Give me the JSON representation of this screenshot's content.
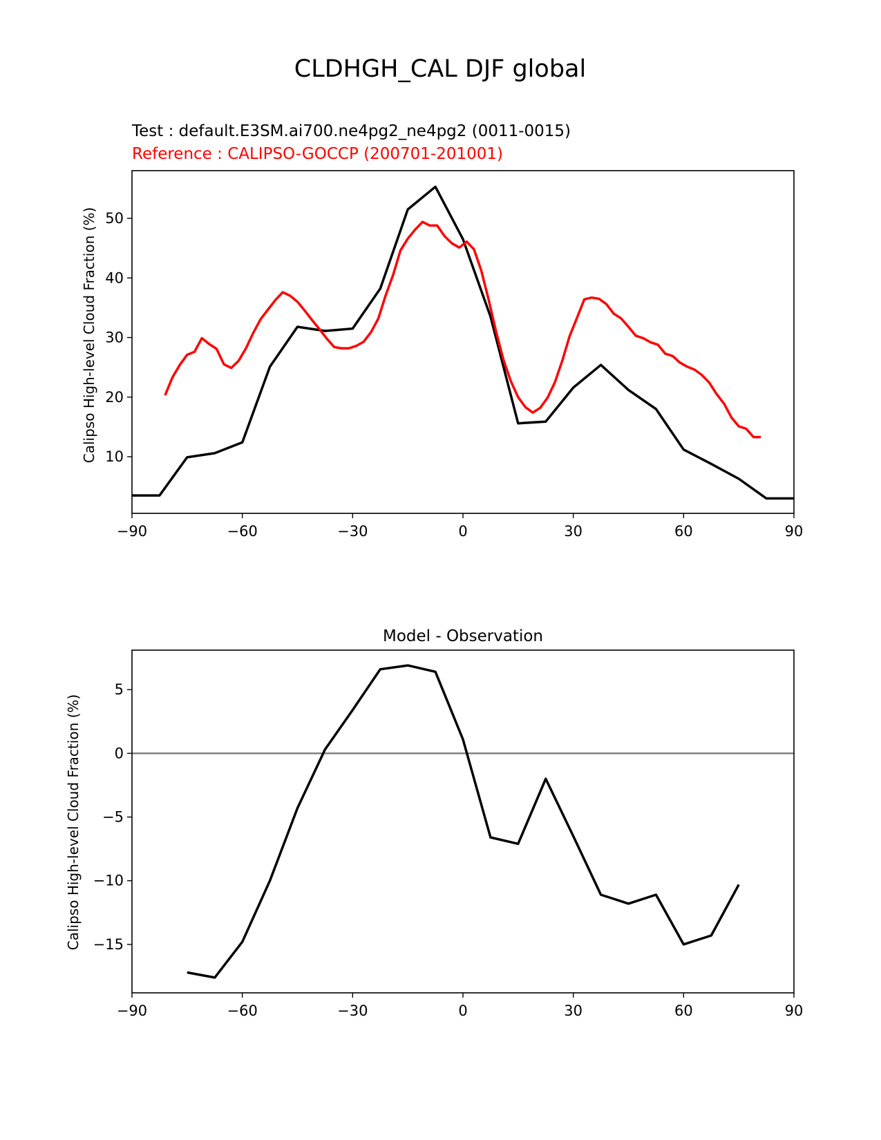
{
  "figure": {
    "suptitle": "CLDHGH_CAL DJF global",
    "colors": {
      "test": "#000000",
      "reference": "#ff0000",
      "zero_line": "#808080"
    }
  },
  "chart_data": [
    {
      "type": "line",
      "title": "",
      "test_label": "Test : default.E3SM.ai700.ne4pg2_ne4pg2 (0011-0015)",
      "reference_label": "Reference : CALIPSO-GOCCP (200701-201001)",
      "xlabel": "",
      "ylabel": "Calipso High-level Cloud Fraction (%)",
      "xlim": [
        -90,
        90
      ],
      "ylim": [
        0.5,
        58
      ],
      "xticks": [
        -90,
        -60,
        -30,
        0,
        30,
        60,
        90
      ],
      "xtick_labels": [
        "−90",
        "−60",
        "−30",
        "0",
        "30",
        "60",
        "90"
      ],
      "yticks": [
        10,
        20,
        30,
        40,
        50
      ],
      "ytick_labels": [
        "10",
        "20",
        "30",
        "40",
        "50"
      ],
      "grid": false,
      "series": [
        {
          "role": "test",
          "color": "#000000",
          "x": [
            -90,
            -82.5,
            -75,
            -67.5,
            -60,
            -52.5,
            -45,
            -37.5,
            -30,
            -22.5,
            -15,
            -7.5,
            0,
            7.5,
            15,
            22.5,
            30,
            37.5,
            45,
            52.5,
            60,
            67.5,
            75,
            82.5,
            90
          ],
          "y": [
            3.5,
            3.5,
            9.9,
            10.6,
            12.4,
            25.1,
            31.8,
            31.1,
            31.5,
            38.2,
            51.5,
            55.3,
            46.5,
            33.5,
            15.6,
            15.9,
            21.6,
            25.4,
            21.2,
            18.0,
            11.2,
            8.8,
            6.3,
            3.0,
            3.0
          ]
        },
        {
          "role": "reference",
          "color": "#ff0000",
          "x": [
            -81,
            -79,
            -77,
            -75,
            -73,
            -71,
            -69,
            -67,
            -65,
            -63,
            -61,
            -59,
            -57,
            -55,
            -53,
            -51,
            -49,
            -47,
            -45,
            -43,
            -41,
            -39,
            -37,
            -35,
            -33,
            -31,
            -29,
            -27,
            -25,
            -23,
            -21,
            -19,
            -17,
            -15,
            -13,
            -11,
            -9,
            -7,
            -5,
            -3,
            -1,
            1,
            3,
            5,
            7,
            9,
            11,
            13,
            15,
            17,
            19,
            21,
            23,
            25,
            27,
            29,
            31,
            33,
            35,
            37,
            39,
            41,
            43,
            45,
            47,
            49,
            51,
            53,
            55,
            57,
            59,
            61,
            63,
            65,
            67,
            69,
            71,
            73,
            75,
            77,
            79,
            81
          ],
          "y": [
            20.3,
            23.3,
            25.4,
            27.1,
            27.6,
            29.9,
            28.9,
            28.1,
            25.5,
            24.9,
            26.1,
            28.2,
            30.8,
            33.1,
            34.7,
            36.3,
            37.6,
            37.0,
            36.0,
            34.5,
            32.9,
            31.4,
            29.8,
            28.4,
            28.2,
            28.2,
            28.6,
            29.3,
            30.9,
            33.2,
            37.1,
            40.5,
            44.6,
            46.6,
            48.1,
            49.4,
            48.8,
            48.8,
            47.0,
            45.8,
            45.1,
            46.1,
            44.8,
            41.2,
            36.3,
            31.0,
            26.3,
            22.7,
            20.0,
            18.3,
            17.4,
            18.2,
            19.9,
            22.5,
            26.1,
            30.2,
            33.3,
            36.4,
            36.7,
            36.5,
            35.6,
            34.0,
            33.2,
            31.8,
            30.3,
            29.9,
            29.2,
            28.8,
            27.3,
            26.9,
            25.8,
            25.1,
            24.6,
            23.7,
            22.4,
            20.5,
            18.9,
            16.6,
            15.1,
            14.7,
            13.3,
            13.3
          ]
        }
      ]
    },
    {
      "type": "line",
      "title": "Model - Observation",
      "xlabel": "",
      "ylabel": "Calipso High-level Cloud Fraction (%)",
      "xlim": [
        -90,
        90
      ],
      "ylim": [
        -18.8,
        8.1
      ],
      "xticks": [
        -90,
        -60,
        -30,
        0,
        30,
        60,
        90
      ],
      "xtick_labels": [
        "−90",
        "−60",
        "−30",
        "0",
        "30",
        "60",
        "90"
      ],
      "yticks": [
        -15,
        -10,
        -5,
        0,
        5
      ],
      "ytick_labels": [
        "−15",
        "−10",
        "−5",
        "0",
        "5"
      ],
      "zero_line": true,
      "grid": false,
      "series": [
        {
          "role": "difference",
          "color": "#000000",
          "x": [
            -75,
            -67.5,
            -60,
            -52.5,
            -45,
            -37.5,
            -30,
            -22.5,
            -15,
            -7.5,
            0,
            7.5,
            15,
            22.5,
            30,
            37.5,
            45,
            52.5,
            60,
            67.5,
            75
          ],
          "y": [
            -17.2,
            -17.6,
            -14.8,
            -10.0,
            -4.3,
            0.3,
            3.4,
            6.6,
            6.9,
            6.4,
            1.1,
            -6.6,
            -7.1,
            -2.0,
            -6.5,
            -11.1,
            -11.8,
            -11.1,
            -15.0,
            -14.3,
            -10.3
          ]
        }
      ]
    }
  ]
}
